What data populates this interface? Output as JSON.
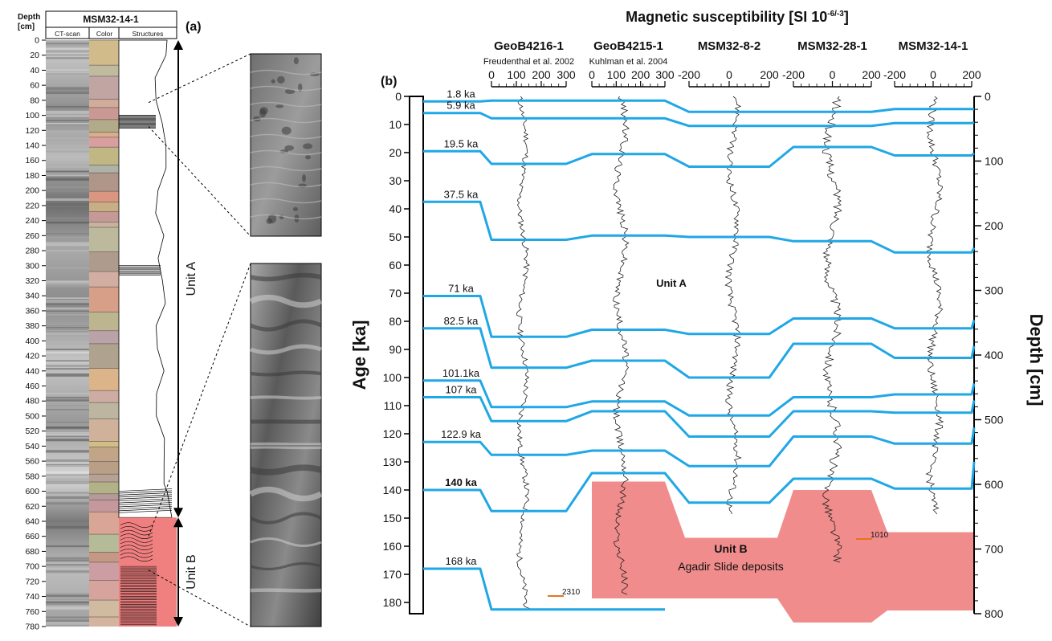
{
  "panel_a": {
    "panel_label": "(a)",
    "core_title": "MSM32-14-1",
    "depth_header": [
      "Depth",
      "[cm]"
    ],
    "column_headers": [
      "CT-scan",
      "Color",
      "Structures"
    ],
    "depth_ticks": [
      0,
      20,
      40,
      60,
      80,
      100,
      120,
      140,
      160,
      180,
      200,
      220,
      240,
      260,
      280,
      300,
      320,
      340,
      360,
      380,
      400,
      420,
      440,
      460,
      480,
      500,
      520,
      540,
      560,
      580,
      600,
      620,
      640,
      660,
      680,
      700,
      720,
      740,
      760,
      780
    ],
    "depth_max": 790,
    "unit_a": {
      "label": "Unit A",
      "top": 0,
      "bottom": 635
    },
    "unit_b": {
      "label": "Unit B",
      "top": 635,
      "bottom": 780
    },
    "zoom_windows": [
      {
        "top_depth": 83,
        "bottom_depth": 115
      },
      {
        "top_depth": 660,
        "bottom_depth": 705
      }
    ]
  },
  "chart_data": {
    "type": "line",
    "panel_label": "(b)",
    "title": "Magnetic susceptibility [SI 10",
    "title_superscript": "-6/-3",
    "title_suffix": "]",
    "ylabel_left": "Age [ka]",
    "ylabel_right": "Depth [cm]",
    "age_axis": {
      "range": [
        0,
        186
      ],
      "ticks": [
        0,
        10,
        20,
        30,
        40,
        50,
        60,
        70,
        80,
        90,
        100,
        110,
        120,
        130,
        140,
        150,
        160,
        170,
        180
      ]
    },
    "depth_axis": {
      "range": [
        0,
        800
      ],
      "ticks": [
        0,
        100,
        200,
        300,
        400,
        500,
        600,
        700,
        800
      ]
    },
    "cores": [
      {
        "name": "GeoB4216-1",
        "reference": "Freudenthal et al. 2002",
        "xticks": [
          0,
          100,
          200,
          300
        ],
        "xrange": [
          0,
          300
        ],
        "outlier": "2310"
      },
      {
        "name": "GeoB4215-1",
        "reference": "Kuhlman et al. 2004",
        "xticks": [
          0,
          100,
          200,
          300
        ],
        "xrange": [
          0,
          300
        ]
      },
      {
        "name": "MSM32-8-2",
        "xticks": [
          -200,
          0,
          200
        ],
        "xrange": [
          -200,
          200
        ]
      },
      {
        "name": "MSM32-28-1",
        "xticks": [
          -200,
          0,
          200
        ],
        "xrange": [
          -200,
          200
        ],
        "outlier": "1010"
      },
      {
        "name": "MSM32-14-1",
        "xticks": [
          -200,
          0,
          200
        ],
        "xrange": [
          -200,
          200
        ]
      }
    ],
    "age_ties": [
      {
        "label": "1.8 ka",
        "age": 1.8,
        "core_ages": [
          1.5,
          1.5,
          5.5,
          5.5,
          4.5
        ],
        "right_depth": 20
      },
      {
        "label": "5.9 ka",
        "age": 5.9,
        "core_ages": [
          7.8,
          7.8,
          10.5,
          10.5,
          9.5
        ],
        "right_depth": 40
      },
      {
        "label": "19.5 ka",
        "age": 19.5,
        "core_ages": [
          24.0,
          20.5,
          25.0,
          18.0,
          21.0
        ],
        "right_depth": 88
      },
      {
        "label": "37.5 ka",
        "age": 37.5,
        "core_ages": [
          51.0,
          49.5,
          50.0,
          51.5,
          55.5
        ],
        "right_depth": 234
      },
      {
        "label": "71 ka",
        "age": 71,
        "core_ages": [
          85.5,
          83.0,
          84.5,
          79.0,
          82.5
        ],
        "right_depth": 346
      },
      {
        "label": "82.5 ka",
        "age": 82.5,
        "core_ages": [
          96.5,
          94.0,
          100.0,
          88.0,
          93.0
        ],
        "right_depth": 386
      },
      {
        "label": "101.1ka",
        "age": 101.1,
        "core_ages": [
          110.5,
          108.5,
          113.5,
          107.0,
          106.0
        ],
        "right_depth": 444
      },
      {
        "label": "107 ka",
        "age": 107,
        "core_ages": [
          115.5,
          112.0,
          121.0,
          112.0,
          112.5
        ],
        "right_depth": 470
      },
      {
        "label": "122.9 ka",
        "age": 122.9,
        "core_ages": [
          127.5,
          126.0,
          131.5,
          121.0,
          123.5
        ],
        "right_depth": 512
      },
      {
        "label": "140 ka",
        "label_bold": true,
        "age": 140,
        "core_ages": [
          147.5,
          134.0,
          144.5,
          136.0,
          139.5
        ],
        "right_depth": 565
      },
      {
        "label": "168 ka",
        "age": 168,
        "core_ages": [
          182.5,
          182.5,
          null,
          null,
          null
        ],
        "right_depth": null
      }
    ],
    "unit_a_label": "Unit A",
    "unit_b": {
      "label": "Unit B",
      "sublabel": "Agadir Slide deposits",
      "color": "#f08080"
    },
    "tie_line_color": "#1fa7e6"
  }
}
